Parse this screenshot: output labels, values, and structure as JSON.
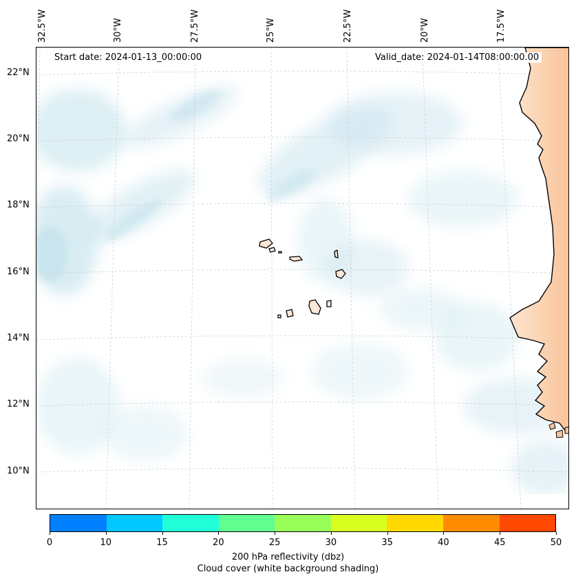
{
  "map": {
    "start_date": "Start date: 2024-01-13_00:00:00",
    "valid_date": "Valid_date: 2024-01-14T08:00:00.00",
    "lon_labels": [
      "32.5°W",
      "30°W",
      "27.5°W",
      "25°W",
      "22.5°W",
      "20°W",
      "17.5°W"
    ],
    "lat_labels": [
      "22°N",
      "20°N",
      "18°N",
      "16°N",
      "14°N",
      "12°N",
      "10°N"
    ]
  },
  "colorbar": {
    "ticks": [
      "0",
      "10",
      "15",
      "20",
      "25",
      "30",
      "35",
      "40",
      "45",
      "50"
    ],
    "colors": [
      "#0080ff",
      "#00c8ff",
      "#20ffd8",
      "#60ff90",
      "#98ff58",
      "#d8ff20",
      "#ffd800",
      "#ff8c00",
      "#ff4800"
    ],
    "label_line1": "200 hPa reflectivity (dbz)",
    "label_line2": "Cloud cover (white background shading)"
  }
}
